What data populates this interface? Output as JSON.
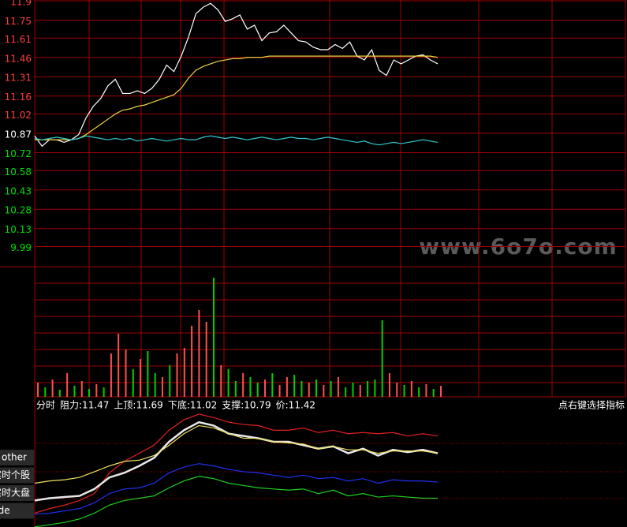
{
  "chart_data": [
    {
      "type": "line",
      "ylim": [
        9.84,
        11.9
      ],
      "yticks": [
        11.9,
        11.75,
        11.61,
        11.46,
        11.31,
        11.16,
        11.02,
        10.87,
        10.72,
        10.58,
        10.43,
        10.28,
        10.13,
        9.99
      ],
      "tick_colors": [
        "#ff3c3c",
        "#ff3c3c",
        "#ff3c3c",
        "#ff3c3c",
        "#ff3c3c",
        "#ff3c3c",
        "#ff3c3c",
        "#ffffff",
        "#00e000",
        "#00e000",
        "#00e000",
        "#00e000",
        "#00e000",
        "#00e000"
      ],
      "grid": true,
      "series": [
        {
          "color": "#ffffff",
          "values": [
            10.85,
            10.77,
            10.82,
            10.82,
            10.8,
            10.82,
            10.86,
            10.99,
            11.08,
            11.14,
            11.24,
            11.29,
            11.18,
            11.18,
            11.2,
            11.18,
            11.22,
            11.29,
            11.4,
            11.35,
            11.47,
            11.62,
            11.8,
            11.85,
            11.88,
            11.83,
            11.74,
            11.76,
            11.79,
            11.68,
            11.71,
            11.59,
            11.65,
            11.66,
            11.71,
            11.65,
            11.59,
            11.58,
            11.54,
            11.52,
            11.52,
            11.56,
            11.53,
            11.58,
            11.47,
            11.44,
            11.52,
            11.36,
            11.32,
            11.44,
            11.41,
            11.44,
            11.47,
            11.48,
            11.44,
            11.41
          ]
        },
        {
          "color": "#f0d040",
          "values": [
            10.82,
            10.82,
            10.82,
            10.82,
            10.82,
            10.82,
            10.83,
            10.86,
            10.9,
            10.94,
            10.98,
            11.02,
            11.05,
            11.06,
            11.08,
            11.09,
            11.11,
            11.13,
            11.15,
            11.17,
            11.22,
            11.3,
            11.36,
            11.39,
            11.41,
            11.43,
            11.44,
            11.45,
            11.45,
            11.46,
            11.46,
            11.46,
            11.47,
            11.47,
            11.47,
            11.47,
            11.47,
            11.47,
            11.47,
            11.47,
            11.47,
            11.47,
            11.47,
            11.47,
            11.47,
            11.47,
            11.47,
            11.47,
            11.47,
            11.47,
            11.47,
            11.47,
            11.47,
            11.47,
            11.47,
            11.46
          ]
        },
        {
          "color": "#30c8d0",
          "values": [
            10.83,
            10.82,
            10.83,
            10.84,
            10.83,
            10.82,
            10.83,
            10.85,
            10.84,
            10.83,
            10.82,
            10.83,
            10.82,
            10.83,
            10.81,
            10.82,
            10.83,
            10.82,
            10.81,
            10.82,
            10.83,
            10.82,
            10.82,
            10.84,
            10.85,
            10.84,
            10.83,
            10.84,
            10.83,
            10.82,
            10.83,
            10.84,
            10.83,
            10.82,
            10.83,
            10.84,
            10.83,
            10.83,
            10.82,
            10.83,
            10.84,
            10.83,
            10.82,
            10.81,
            10.8,
            10.81,
            10.79,
            10.78,
            10.79,
            10.8,
            10.79,
            10.8,
            10.81,
            10.82,
            10.81,
            10.8
          ]
        }
      ]
    },
    {
      "type": "bar",
      "ylim": [
        0,
        165
      ],
      "values": [
        18,
        12,
        22,
        9,
        30,
        14,
        20,
        10,
        16,
        12,
        55,
        80,
        60,
        35,
        48,
        58,
        30,
        25,
        40,
        55,
        62,
        90,
        110,
        95,
        151,
        40,
        35,
        20,
        30,
        25,
        18,
        22,
        30,
        15,
        25,
        28,
        20,
        18,
        22,
        15,
        20,
        25,
        12,
        18,
        15,
        20,
        22,
        97,
        30,
        18,
        15,
        20,
        12,
        16,
        10,
        14
      ],
      "bar_colors": [
        "#ff5050",
        "#00d000",
        "#ff5050",
        "#00d000",
        "#ff5050",
        "#00d000",
        "#ff5050",
        "#00d000",
        "#ff5050",
        "#00d000",
        "#ff5050",
        "#ff5050",
        "#ff5050",
        "#00d000",
        "#ff5050",
        "#00d000",
        "#00d000",
        "#ff5050",
        "#00d000",
        "#ff5050",
        "#ff5050",
        "#ff5050",
        "#ff5050",
        "#ff5050",
        "#00d000",
        "#ff5050",
        "#00d000",
        "#00d000",
        "#ff5050",
        "#00d000",
        "#00d000",
        "#ff5050",
        "#00d000",
        "#ff5050",
        "#ff5050",
        "#00d000",
        "#00d000",
        "#ff5050",
        "#00d000",
        "#ff5050",
        "#00d000",
        "#ff5050",
        "#00d000",
        "#00d000",
        "#ff5050",
        "#00d000",
        "#00d000",
        "#00d000",
        "#ff5050",
        "#ff5050",
        "#00d000",
        "#ff5050",
        "#00d000",
        "#ff5050",
        "#00d000",
        "#ff5050"
      ]
    },
    {
      "type": "line",
      "ylim": [
        0,
        100
      ],
      "header": [
        "分时",
        "阻力:11.47",
        "上顶:11.69",
        "下底:11.02",
        "支撑:10.79",
        "价:11.42"
      ],
      "hint": "点右键选择指标",
      "tabs": [
        "other",
        "实时个股",
        "实时大盘",
        "dde"
      ],
      "series": [
        {
          "color": "#e02020",
          "values": [
            12,
            16,
            19,
            23,
            29,
            47,
            57,
            64,
            71,
            84,
            93,
            98,
            95,
            91,
            89,
            88,
            84,
            84,
            86,
            82,
            84,
            81,
            82,
            81,
            82,
            79,
            81,
            79
          ]
        },
        {
          "color": "#e8e8e8",
          "values": [
            23,
            25,
            26,
            27,
            33,
            43,
            47,
            53,
            60,
            74,
            84,
            91,
            88,
            81,
            79,
            77,
            74,
            74,
            71,
            68,
            70,
            64,
            68,
            62,
            67,
            65,
            67,
            64
          ]
        },
        {
          "color": "#f0e060",
          "values": [
            38,
            40,
            41,
            43,
            48,
            53,
            57,
            58,
            62,
            71,
            81,
            88,
            86,
            81,
            77,
            77,
            74,
            73,
            72,
            68,
            70,
            67,
            67,
            64,
            66,
            66,
            66,
            64
          ]
        },
        {
          "color": "#2030f0",
          "values": [
            11,
            12,
            14,
            16,
            21,
            29,
            33,
            34,
            38,
            47,
            52,
            55,
            53,
            50,
            48,
            47,
            45,
            43,
            45,
            42,
            43,
            40,
            42,
            38,
            41,
            40,
            40,
            39
          ]
        },
        {
          "color": "#20d020",
          "values": [
            0,
            2,
            4,
            7,
            12,
            19,
            23,
            25,
            27,
            34,
            40,
            44,
            42,
            38,
            36,
            34,
            33,
            32,
            33,
            29,
            32,
            27,
            29,
            26,
            27,
            26,
            25,
            25
          ]
        }
      ]
    }
  ],
  "watermark": "www.6o7o.com"
}
